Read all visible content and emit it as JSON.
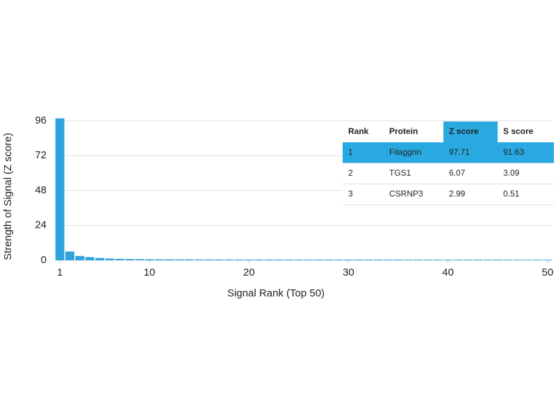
{
  "chart_data": {
    "type": "bar",
    "xlabel": "Signal Rank (Top 50)",
    "ylabel": "Strength of Signal (Z score)",
    "color": "#2ea3dc",
    "x": [
      1,
      2,
      3,
      4,
      5,
      6,
      7,
      8,
      9,
      10,
      11,
      12,
      13,
      14,
      15,
      16,
      17,
      18,
      19,
      20,
      21,
      22,
      23,
      24,
      25,
      26,
      27,
      28,
      29,
      30,
      31,
      32,
      33,
      34,
      35,
      36,
      37,
      38,
      39,
      40,
      41,
      42,
      43,
      44,
      45,
      46,
      47,
      48,
      49,
      50
    ],
    "values": [
      97.71,
      6.07,
      2.99,
      2.2,
      1.6,
      1.2,
      1.0,
      0.9,
      0.8,
      0.75,
      0.7,
      0.7,
      0.65,
      0.65,
      0.6,
      0.6,
      0.6,
      0.6,
      0.55,
      0.55,
      0.55,
      0.55,
      0.55,
      0.5,
      0.5,
      0.5,
      0.5,
      0.5,
      0.5,
      0.5,
      0.5,
      0.5,
      0.5,
      0.5,
      0.5,
      0.45,
      0.45,
      0.45,
      0.45,
      0.45,
      0.45,
      0.45,
      0.45,
      0.45,
      0.45,
      0.4,
      0.4,
      0.4,
      0.4,
      0.4
    ],
    "xlim": [
      0.5,
      50.5
    ],
    "xticks": [
      1,
      10,
      20,
      30,
      40,
      50
    ],
    "ylim": [
      0,
      96
    ],
    "yticks": [
      0,
      24,
      48,
      72,
      96
    ],
    "grid": true,
    "table": {
      "columns": [
        "Rank",
        "Protein",
        "Z score",
        "S score"
      ],
      "rows": [
        [
          1,
          "Filaggrin",
          97.71,
          91.63
        ],
        [
          2,
          "TGS1",
          6.07,
          3.09
        ],
        [
          3,
          "CSRNP3",
          2.99,
          0.51
        ]
      ],
      "highlight_row": 0,
      "highlight_column": 2,
      "highlight_color": "#29a9e1"
    }
  }
}
